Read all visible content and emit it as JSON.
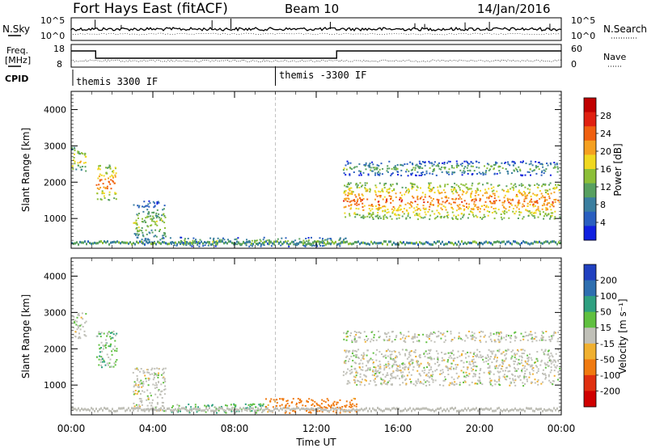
{
  "header": {
    "station": "Fort Hays East (fitACF)",
    "beam": "Beam 10",
    "date": "14/Jan/2016"
  },
  "aux_panels": {
    "nsky": {
      "label": "N.Sky",
      "ticks": [
        "10^5",
        "10^0"
      ]
    },
    "nsearch": {
      "label": "N.Search",
      "ticks": [
        "10^5",
        "10^0"
      ]
    },
    "freq": {
      "label_line1": "Freq.",
      "label_line2": "[MHz]",
      "ticks": [
        "18",
        "8"
      ]
    },
    "nave": {
      "label": "Nave",
      "ticks": [
        "60",
        "0"
      ]
    },
    "cpid": {
      "label": "CPID",
      "segments": [
        "themis 3300 IF",
        "themis -3300 IF"
      ],
      "switch_time_hours": 10
    }
  },
  "chart_data": [
    {
      "type": "heatmap",
      "name": "power",
      "xlabel": "",
      "ylabel": "Slant Range [km]",
      "xlim": [
        0,
        24
      ],
      "ylim": [
        180,
        4500
      ],
      "yticks": [
        1000,
        2000,
        3000,
        4000
      ],
      "xtick_labels": [
        "00:00",
        "04:00",
        "08:00",
        "12:00",
        "16:00",
        "20:00",
        "00:00"
      ],
      "colorbar": {
        "label": "Power [dB]",
        "ticks": [
          "4",
          "8",
          "12",
          "16",
          "20",
          "24",
          "28"
        ],
        "colors": [
          "#1020e0",
          "#2a5fc0",
          "#3b7fa0",
          "#58a060",
          "#8cbf38",
          "#f0d820",
          "#f5a020",
          "#f06010",
          "#e02010",
          "#c00000"
        ]
      },
      "regions": [
        {
          "t0": 0.0,
          "t1": 0.7,
          "r0": 2300,
          "r1": 3000,
          "value": 14
        },
        {
          "t0": 1.2,
          "t1": 2.2,
          "r0": 1500,
          "r1": 2500,
          "value": 18
        },
        {
          "t0": 3.0,
          "t1": 4.6,
          "r0": 300,
          "r1": 1500,
          "value": 10
        },
        {
          "t0": 4.8,
          "t1": 13.5,
          "r0": 250,
          "r1": 500,
          "value": 10
        },
        {
          "t0": 13.3,
          "t1": 23.9,
          "r0": 1000,
          "r1": 2000,
          "value": 18
        },
        {
          "t0": 13.3,
          "t1": 23.9,
          "r0": 2200,
          "r1": 2600,
          "value": 8
        }
      ]
    },
    {
      "type": "heatmap",
      "name": "velocity",
      "xlabel": "Time UT",
      "ylabel": "Slant Range [km]",
      "xlim": [
        0,
        24
      ],
      "ylim": [
        180,
        4500
      ],
      "yticks": [
        1000,
        2000,
        3000,
        4000
      ],
      "xtick_labels": [
        "00:00",
        "04:00",
        "08:00",
        "12:00",
        "16:00",
        "20:00",
        "00:00"
      ],
      "colorbar": {
        "label": "Velocity [m s⁻¹]",
        "ticks": [
          "200",
          "100",
          "50",
          "15",
          "-15",
          "-50",
          "-100",
          "-200"
        ],
        "colors": [
          "#2040c0",
          "#2e6fb0",
          "#2fa080",
          "#60c040",
          "#c0c0b8",
          "#f0b030",
          "#f07a10",
          "#e03010",
          "#d00000"
        ]
      },
      "regions": [
        {
          "t0": 0.0,
          "t1": 0.7,
          "r0": 2300,
          "r1": 3000,
          "value": 0
        },
        {
          "t0": 1.2,
          "t1": 2.2,
          "r0": 1500,
          "r1": 2500,
          "value": 20
        },
        {
          "t0": 3.0,
          "t1": 4.6,
          "r0": 300,
          "r1": 1500,
          "value": 0
        },
        {
          "t0": 4.8,
          "t1": 9.5,
          "r0": 250,
          "r1": 500,
          "value": 30
        },
        {
          "t0": 9.5,
          "t1": 14.0,
          "r0": 250,
          "r1": 650,
          "value": -50
        },
        {
          "t0": 13.3,
          "t1": 23.9,
          "r0": 1000,
          "r1": 2000,
          "value": 0
        },
        {
          "t0": 13.3,
          "t1": 23.9,
          "r0": 2200,
          "r1": 2500,
          "value": 0
        }
      ]
    }
  ]
}
